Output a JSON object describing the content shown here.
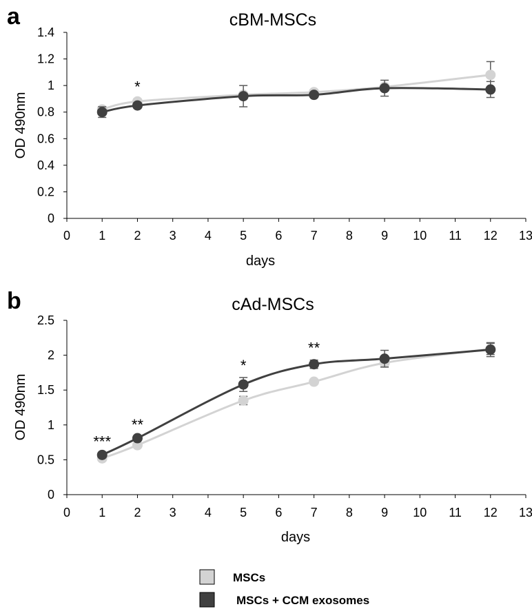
{
  "figure": {
    "panel_letters": [
      "a",
      "b"
    ]
  },
  "chart_data": [
    {
      "type": "line",
      "title": "cBM-MSCs",
      "xlabel": "days",
      "ylabel": "OD 490nm",
      "xlim": [
        0,
        13
      ],
      "ylim": [
        0,
        1.4
      ],
      "xticks": [
        0,
        1,
        2,
        3,
        4,
        5,
        6,
        7,
        8,
        9,
        10,
        11,
        12,
        13
      ],
      "yticks": [
        0,
        0.2,
        0.4,
        0.6,
        0.8,
        1,
        1.2,
        1.4
      ],
      "ytick_labels": [
        "0",
        "0.2",
        "0.4",
        "0.6",
        "0.8",
        "1",
        "1.2",
        "1.4"
      ],
      "x": [
        1,
        2,
        5,
        7,
        9,
        12
      ],
      "series": [
        {
          "name": "MSCs",
          "color": "#d3d3d3",
          "values": [
            0.82,
            0.88,
            0.93,
            0.95,
            0.99,
            1.08
          ],
          "errors": [
            0.02,
            0.02,
            0.02,
            0.02,
            0.02,
            0.1
          ]
        },
        {
          "name": "MSCs + CCM exosomes",
          "color": "#404040",
          "values": [
            0.8,
            0.85,
            0.92,
            0.93,
            0.98,
            0.97
          ],
          "errors": [
            0.04,
            0.02,
            0.08,
            0.02,
            0.06,
            0.06
          ]
        }
      ],
      "annotations": [
        {
          "x": 2,
          "text": "*"
        }
      ],
      "grid": false
    },
    {
      "type": "line",
      "title": "cAd-MSCs",
      "xlabel": "days",
      "ylabel": "OD 490nm",
      "xlim": [
        0,
        13
      ],
      "ylim": [
        0,
        2.5
      ],
      "xticks": [
        0,
        1,
        2,
        3,
        4,
        5,
        6,
        7,
        8,
        9,
        10,
        11,
        12,
        13
      ],
      "yticks": [
        0,
        0.5,
        1,
        1.5,
        2,
        2.5
      ],
      "ytick_labels": [
        "0",
        "0.5",
        "1",
        "1.5",
        "2",
        "2.5"
      ],
      "x": [
        1,
        2,
        5,
        7,
        9,
        12
      ],
      "series": [
        {
          "name": "MSCs",
          "color": "#d3d3d3",
          "values": [
            0.52,
            0.71,
            1.35,
            1.62,
            1.89,
            2.09
          ],
          "errors": [
            0.02,
            0.02,
            0.06,
            0.02,
            0.06,
            0.08
          ]
        },
        {
          "name": "MSCs + CCM exosomes",
          "color": "#404040",
          "values": [
            0.57,
            0.81,
            1.58,
            1.87,
            1.95,
            2.08
          ],
          "errors": [
            0.02,
            0.02,
            0.1,
            0.06,
            0.12,
            0.1
          ]
        }
      ],
      "annotations": [
        {
          "x": 1,
          "text": "***"
        },
        {
          "x": 2,
          "text": "**"
        },
        {
          "x": 5,
          "text": "*"
        },
        {
          "x": 7,
          "text": "**"
        }
      ],
      "grid": false
    }
  ],
  "legend": {
    "placement": "bottom-center",
    "items": [
      {
        "label": "MSCs",
        "color": "#d3d3d3"
      },
      {
        "label": "MSCs + CCM exosomes",
        "color": "#404040"
      }
    ]
  }
}
